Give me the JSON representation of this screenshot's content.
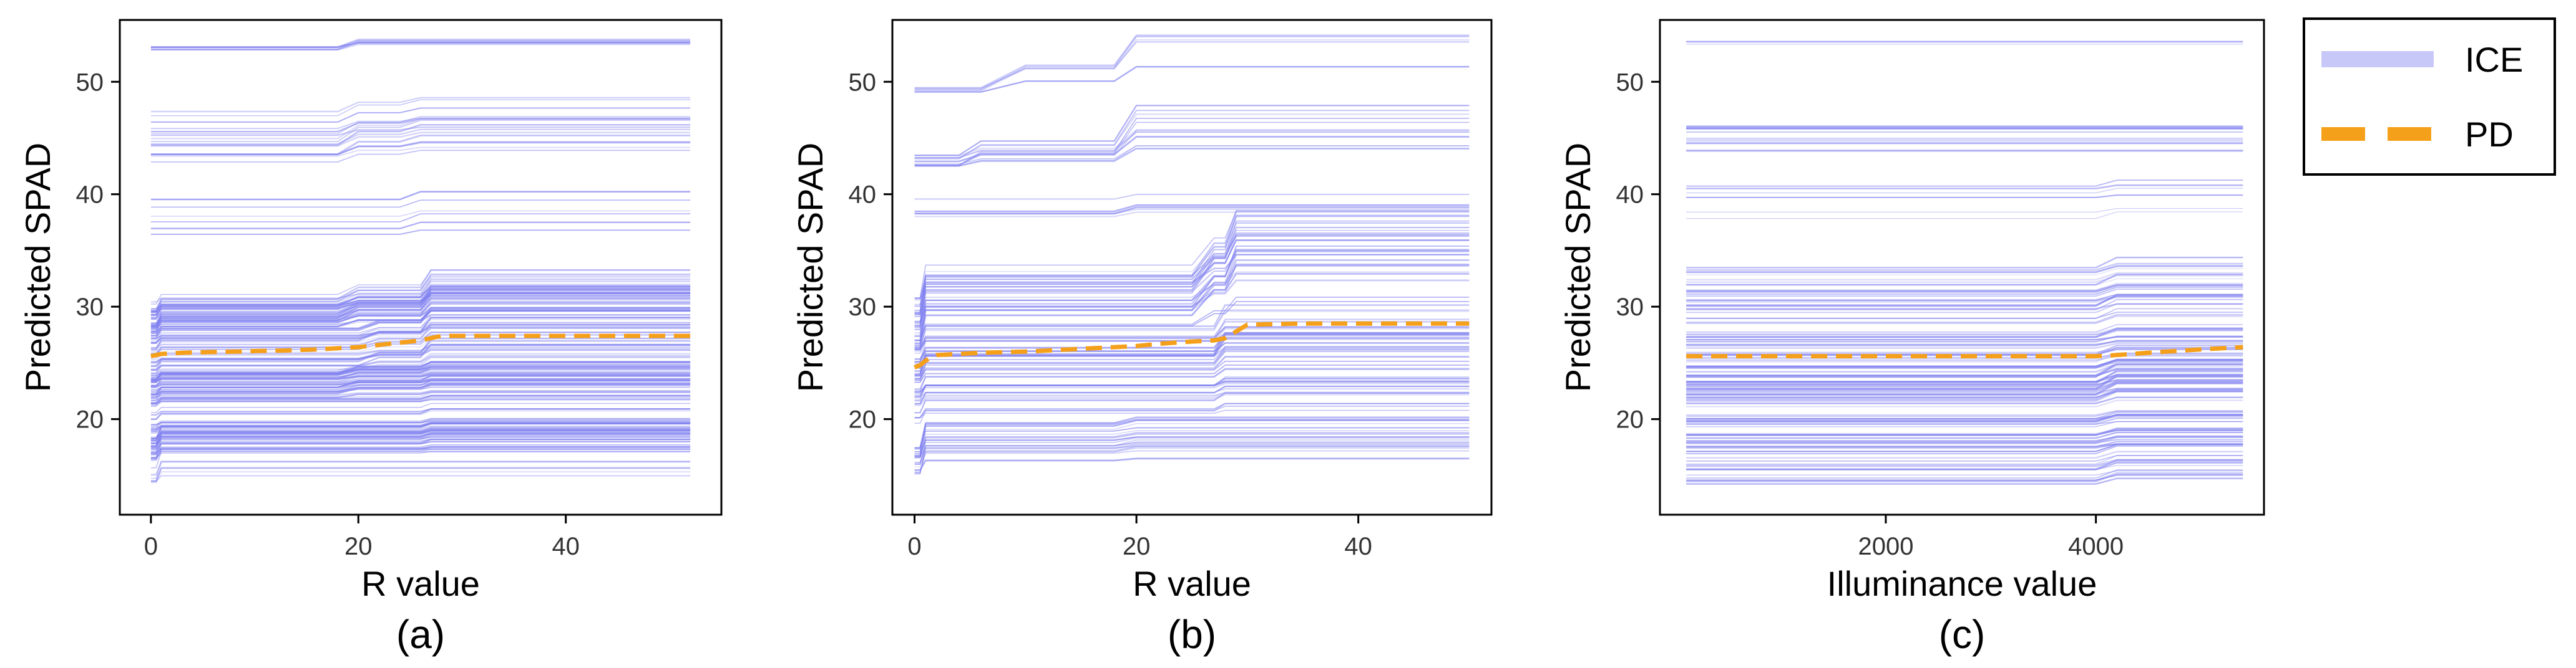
{
  "colors": {
    "ice": "#8080f0",
    "ice_legend": "#c8c8f8",
    "pd": "#f5a01a",
    "axis": "#000000"
  },
  "legend": [
    {
      "label": "ICE",
      "style": "ice"
    },
    {
      "label": "PD",
      "style": "pd"
    }
  ],
  "chart_data": [
    {
      "type": "line",
      "panel": "(a)",
      "xlabel": "R value",
      "ylabel": "Predicted SPAD",
      "xlim": [
        -3,
        55
      ],
      "ylim": [
        11.5,
        55.5
      ],
      "xticks": [
        0,
        20,
        40
      ],
      "yticks": [
        20,
        30,
        40,
        50
      ],
      "x_points": [
        0,
        0.5,
        1,
        3,
        5,
        8,
        10,
        13,
        16,
        18,
        20,
        22,
        24,
        26,
        27,
        28,
        30,
        35,
        40,
        45,
        52
      ],
      "pd": [
        25.6,
        25.7,
        25.8,
        25.9,
        25.95,
        26.0,
        26.05,
        26.1,
        26.2,
        26.3,
        26.4,
        26.6,
        26.8,
        27.0,
        27.2,
        27.4,
        27.4,
        27.4,
        27.4,
        27.4,
        27.4
      ],
      "ice_clusters": [
        {
          "base": [
            52.8,
            53.2
          ],
          "n": 6,
          "steps": [
            [
              20,
              0.6
            ]
          ]
        },
        {
          "base": [
            42.0,
            47.5
          ],
          "n": 18,
          "steps": [
            [
              20,
              1.0
            ],
            [
              26,
              0.5
            ]
          ]
        },
        {
          "base": [
            36.0,
            41.0
          ],
          "n": 6,
          "steps": [
            [
              25,
              0.6
            ]
          ]
        },
        {
          "base": [
            27.5,
            30.5
          ],
          "n": 40,
          "steps": [
            [
              1,
              0.8
            ],
            [
              20,
              0.8
            ],
            [
              27,
              1.2
            ]
          ]
        },
        {
          "base": [
            24.0,
            27.5
          ],
          "n": 34,
          "steps": [
            [
              1,
              0.6
            ],
            [
              22,
              0.6
            ],
            [
              27,
              1.0
            ]
          ]
        },
        {
          "base": [
            21.5,
            24.0
          ],
          "n": 40,
          "steps": [
            [
              1,
              0.5
            ],
            [
              20,
              0.5
            ],
            [
              27,
              0.4
            ]
          ]
        },
        {
          "base": [
            18.5,
            21.5
          ],
          "n": 20,
          "steps": [
            [
              1,
              0.4
            ],
            [
              27,
              0.3
            ]
          ]
        },
        {
          "base": [
            16.5,
            18.5
          ],
          "n": 36,
          "steps": [
            [
              1,
              1.0
            ],
            [
              27,
              0.3
            ]
          ]
        },
        {
          "base": [
            14.0,
            16.5
          ],
          "n": 10,
          "steps": [
            [
              1,
              1.2
            ]
          ]
        }
      ]
    },
    {
      "type": "line",
      "panel": "(b)",
      "xlabel": "R value",
      "ylabel": "Predicted SPAD",
      "xlim": [
        -2,
        52
      ],
      "ylim": [
        11.5,
        55.5
      ],
      "xticks": [
        0,
        20,
        40
      ],
      "yticks": [
        20,
        30,
        40,
        50
      ],
      "x_points": [
        0,
        0.5,
        1,
        1.5,
        2,
        4,
        6,
        10,
        14,
        18,
        20,
        22,
        25,
        27,
        28,
        29,
        30,
        35,
        40,
        45,
        50
      ],
      "pd": [
        24.6,
        24.8,
        25.2,
        25.5,
        25.7,
        25.8,
        25.9,
        26.0,
        26.2,
        26.4,
        26.5,
        26.7,
        26.9,
        27.0,
        27.2,
        27.8,
        28.4,
        28.5,
        28.5,
        28.5,
        28.5
      ],
      "ice_clusters": [
        {
          "base": [
            49.0,
            49.5
          ],
          "n": 5,
          "steps": [
            [
              7,
              1.8
            ],
            [
              20,
              2.4
            ]
          ]
        },
        {
          "base": [
            42.5,
            43.5
          ],
          "n": 12,
          "steps": [
            [
              5,
              1.0
            ],
            [
              20,
              2.5
            ]
          ]
        },
        {
          "base": [
            36.0,
            40.0
          ],
          "n": 5,
          "steps": [
            [
              20,
              0.6
            ]
          ]
        },
        {
          "base": [
            26.5,
            31.0
          ],
          "n": 30,
          "steps": [
            [
              1,
              3.0
            ],
            [
              27,
              2.5
            ],
            [
              29,
              2.5
            ]
          ]
        },
        {
          "base": [
            23.0,
            26.5
          ],
          "n": 30,
          "steps": [
            [
              1,
              1.5
            ],
            [
              28,
              1.5
            ]
          ]
        },
        {
          "base": [
            19.5,
            23.0
          ],
          "n": 20,
          "steps": [
            [
              1,
              1.0
            ],
            [
              28,
              0.6
            ]
          ]
        },
        {
          "base": [
            15.0,
            17.5
          ],
          "n": 24,
          "steps": [
            [
              1,
              2.0
            ],
            [
              20,
              0.4
            ]
          ]
        }
      ]
    },
    {
      "type": "line",
      "panel": "(c)",
      "xlabel": "Illuminance value",
      "ylabel": "Predicted SPAD",
      "xlim": [
        -150,
        5600
      ],
      "ylim": [
        11.5,
        55.5
      ],
      "xticks": [
        2000,
        4000
      ],
      "yticks": [
        20,
        30,
        40,
        50
      ],
      "x_points": [
        100,
        500,
        1000,
        1500,
        2000,
        2500,
        3000,
        3500,
        4000,
        4200,
        4500,
        5000,
        5400
      ],
      "pd": [
        25.6,
        25.6,
        25.6,
        25.6,
        25.6,
        25.6,
        25.6,
        25.6,
        25.6,
        25.7,
        25.9,
        26.2,
        26.4
      ],
      "ice_clusters": [
        {
          "base": [
            53.3,
            53.6
          ],
          "n": 3,
          "steps": []
        },
        {
          "base": [
            43.5,
            46.5
          ],
          "n": 12,
          "steps": []
        },
        {
          "base": [
            36.0,
            41.0
          ],
          "n": 6,
          "steps": [
            [
              4200,
              0.5
            ]
          ]
        },
        {
          "base": [
            28.0,
            33.5
          ],
          "n": 26,
          "steps": [
            [
              4200,
              0.8
            ]
          ]
        },
        {
          "base": [
            24.0,
            28.0
          ],
          "n": 30,
          "steps": [
            [
              4200,
              0.6
            ]
          ]
        },
        {
          "base": [
            21.5,
            24.0
          ],
          "n": 36,
          "steps": [
            [
              4200,
              1.0
            ]
          ]
        },
        {
          "base": [
            17.5,
            21.5
          ],
          "n": 24,
          "steps": [
            [
              4200,
              0.5
            ]
          ]
        },
        {
          "base": [
            14.0,
            17.5
          ],
          "n": 22,
          "steps": [
            [
              4200,
              0.6
            ]
          ]
        }
      ]
    }
  ]
}
